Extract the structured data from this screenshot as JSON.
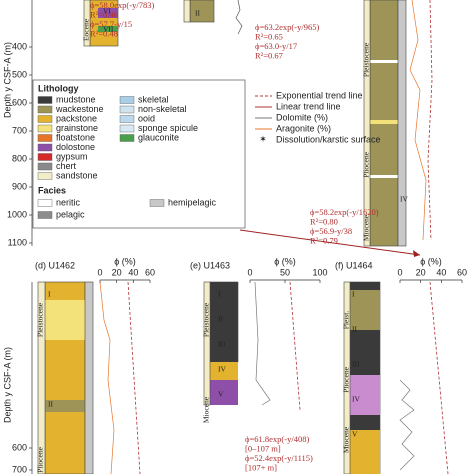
{
  "top_axis": {
    "label": "Depth y CSF-A (m)",
    "ticks": [
      400,
      500,
      600,
      700,
      800,
      900,
      1000,
      1100
    ]
  },
  "top_equations": {
    "a": [
      "ϕ=58.0exp(-y/783)",
      "R²=0.46",
      "ϕ=57.7-y/15",
      "R²=0.48"
    ],
    "b": [
      "ϕ=63.2exp(-y/965)",
      "R²=0.65",
      "ϕ=63.0-y/17",
      "R²=0.67"
    ],
    "c": [
      "ϕ=58.2exp(-y/1620)",
      "R²=0.80",
      "ϕ=56.9-y/38",
      "R²=0.79"
    ]
  },
  "top_epochs": {
    "a": [
      "Eocene"
    ],
    "c": [
      "Pleistocene",
      "Pliocene",
      "Miocene"
    ]
  },
  "top_units": {
    "a": [
      "VI",
      "VII"
    ],
    "b": [
      "II"
    ],
    "c": [
      "IV"
    ]
  },
  "legend": {
    "lithology_title": "Lithology",
    "lithology": [
      {
        "name": "mudstone",
        "color": "#3a3a3a"
      },
      {
        "name": "wackestone",
        "color": "#9e9458"
      },
      {
        "name": "packstone",
        "color": "#e3b22f"
      },
      {
        "name": "grainstone",
        "color": "#f3e27a"
      },
      {
        "name": "floatstone",
        "color": "#e8742a"
      },
      {
        "name": "dolostone",
        "color": "#8e4fa8"
      },
      {
        "name": "gypsum",
        "color": "#d42a2a"
      },
      {
        "name": "chert",
        "color": "#8a8a8a"
      },
      {
        "name": "sandstone",
        "color": "#f2edc8"
      }
    ],
    "components": [
      {
        "name": "skeletal",
        "color": "#a9cfe8"
      },
      {
        "name": "non-skeletal",
        "color": "#cfe3ef"
      },
      {
        "name": "ooid",
        "color": "#bcd8ec"
      },
      {
        "name": "sponge spicule",
        "color": "#d8e9f3"
      },
      {
        "name": "glauconite",
        "color": "#4aa04a"
      }
    ],
    "lines": [
      "Exponential trend line",
      "Linear trend line",
      "Dolomite (%)",
      "Aragonite (%)",
      "Dissolution/karstic surface"
    ],
    "facies_title": "Facies",
    "facies": [
      {
        "name": "neritic",
        "color": "#ffffff"
      },
      {
        "name": "hemipelagic",
        "color": "#c8c8c8"
      },
      {
        "name": "pelagic",
        "color": "#8c8c8c"
      }
    ]
  },
  "panels": [
    {
      "label": "(d) U1462",
      "axis_label": "ϕ (%)",
      "ticks": [
        0,
        20,
        40,
        60
      ],
      "epochs": [
        "Pleistocene",
        "Pliocene"
      ],
      "units": [
        "I",
        "II"
      ]
    },
    {
      "label": "(e) U1463",
      "axis_label": "ϕ (%)",
      "ticks": [
        0,
        50,
        100
      ],
      "epochs": [
        "Pleistocene",
        "Miocene"
      ],
      "units": [
        "I",
        "II",
        "III",
        "IV",
        "V"
      ]
    },
    {
      "label": "(f) U1464",
      "axis_label": "ϕ (%)",
      "ticks": [
        0,
        20,
        40,
        60
      ],
      "epochs": [
        "Pleist.",
        "Pliocene",
        "Miocene"
      ],
      "units": [
        "I",
        "II",
        "III",
        "IV",
        "V"
      ]
    }
  ],
  "panel_e_equations": [
    "ϕ=61.8exp(-y/408)",
    "[0–107 m]",
    "ϕ=52.4exp(-y/1115)",
    "[107+ m]"
  ],
  "bottom_axis": {
    "label": "Depth y CSF-A (m)",
    "ticks": [
      600,
      700
    ]
  }
}
